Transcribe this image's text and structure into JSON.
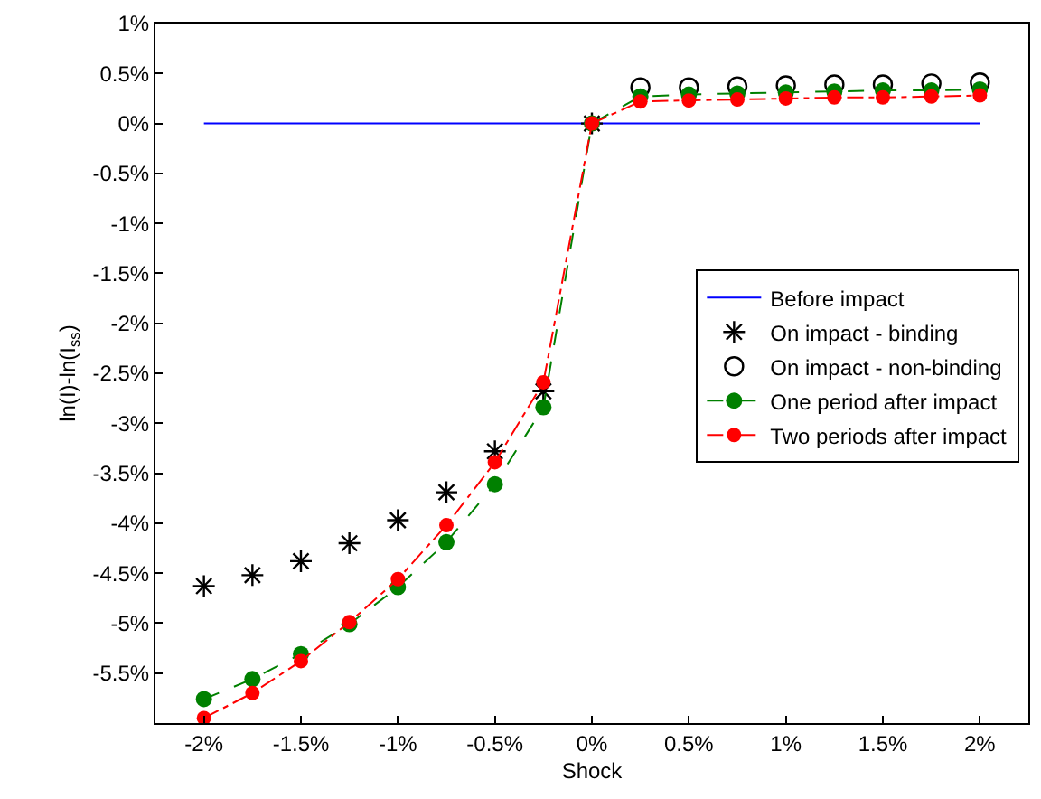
{
  "chart_data": {
    "type": "line",
    "xlabel": "Shock",
    "ylabel": "ln(I)-ln(I$_{ss}$)",
    "x": [
      -2,
      -1.75,
      -1.5,
      -1.25,
      -1,
      -0.75,
      -0.5,
      -0.25,
      0,
      0.25,
      0.5,
      0.75,
      1,
      1.25,
      1.5,
      1.75,
      2
    ],
    "xlim": [
      -2.25,
      2.25
    ],
    "ylim": [
      -6,
      1
    ],
    "xticks": [
      {
        "value": -2,
        "label": "-2%"
      },
      {
        "value": -1.5,
        "label": "-1.5%"
      },
      {
        "value": -1,
        "label": "-1%"
      },
      {
        "value": -0.5,
        "label": "-0.5%"
      },
      {
        "value": 0,
        "label": "0%"
      },
      {
        "value": 0.5,
        "label": "0.5%"
      },
      {
        "value": 1,
        "label": "1%"
      },
      {
        "value": 1.5,
        "label": "1.5%"
      },
      {
        "value": 2,
        "label": "2%"
      }
    ],
    "yticks": [
      {
        "value": 1,
        "label": "1%"
      },
      {
        "value": 0.5,
        "label": "0.5%"
      },
      {
        "value": 0,
        "label": "0%"
      },
      {
        "value": -0.5,
        "label": "-0.5%"
      },
      {
        "value": -1,
        "label": "-1%"
      },
      {
        "value": -1.5,
        "label": "-1.5%"
      },
      {
        "value": -2,
        "label": "-2%"
      },
      {
        "value": -2.5,
        "label": "-2.5%"
      },
      {
        "value": -3,
        "label": "-3%"
      },
      {
        "value": -3.5,
        "label": "-3.5%"
      },
      {
        "value": -4,
        "label": "-4%"
      },
      {
        "value": -4.5,
        "label": "-4.5%"
      },
      {
        "value": -5,
        "label": "-5%"
      },
      {
        "value": -5.5,
        "label": "-5.5%"
      },
      {
        "value": -6,
        "label": null
      }
    ],
    "legend": "right",
    "series": [
      {
        "name": "Before impact",
        "color": "#0000ff",
        "marker": "none",
        "line_style": "solid",
        "values": [
          0,
          0,
          0,
          0,
          0,
          0,
          0,
          0,
          0,
          0,
          0,
          0,
          0,
          0,
          0,
          0,
          0
        ]
      },
      {
        "name": "On impact - binding",
        "type": "scatter",
        "color": "#000000",
        "marker": "cross",
        "values": [
          -4.63,
          -4.52,
          -4.38,
          -4.2,
          -3.97,
          -3.69,
          -3.28,
          -2.68,
          0,
          null,
          null,
          null,
          null,
          null,
          null,
          null,
          null
        ]
      },
      {
        "name": "On impact - non-binding",
        "type": "scatter",
        "color": "#000000",
        "marker": "circle",
        "values": [
          null,
          null,
          null,
          null,
          null,
          null,
          null,
          null,
          null,
          0.36,
          0.36,
          0.37,
          0.38,
          0.39,
          0.39,
          0.4,
          0.41
        ]
      },
      {
        "name": "One period after impact",
        "color": "#008000",
        "marker": "circle",
        "line_style": "dashed",
        "values": [
          -5.76,
          -5.56,
          -5.31,
          -5.01,
          -4.64,
          -4.19,
          -3.61,
          -2.84,
          0,
          0.27,
          0.29,
          0.3,
          0.31,
          0.32,
          0.33,
          0.33,
          0.34
        ]
      },
      {
        "name": "Two periods after impact",
        "color": "#ff0000",
        "marker": "circle",
        "line_style": "dashdot",
        "values": [
          -5.95,
          -5.7,
          -5.38,
          -4.99,
          -4.56,
          -4.02,
          -3.39,
          -2.59,
          0,
          0.22,
          0.23,
          0.24,
          0.25,
          0.26,
          0.26,
          0.27,
          0.28
        ]
      }
    ]
  }
}
